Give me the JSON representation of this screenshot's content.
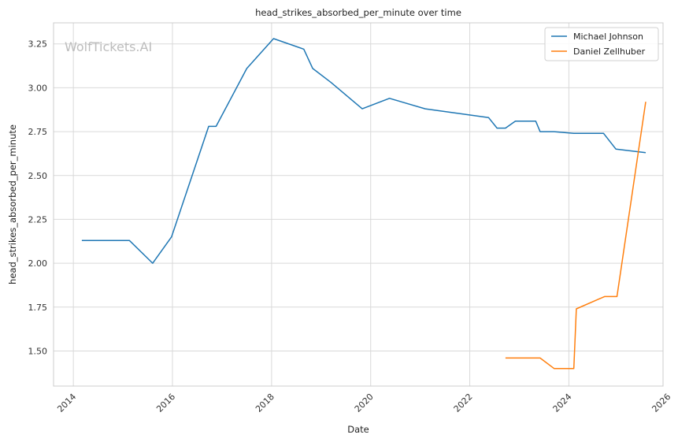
{
  "chart_data": {
    "type": "line",
    "title": "head_strikes_absorbed_per_minute over time",
    "xlabel": "Date",
    "ylabel": "head_strikes_absorbed_per_minute",
    "watermark": "WolfTickets.AI",
    "xlim": [
      2013.6,
      2025.9
    ],
    "ylim": [
      1.3,
      3.37
    ],
    "xticks": [
      2014,
      2016,
      2018,
      2020,
      2022,
      2024,
      2026
    ],
    "xtick_labels": [
      "2014",
      "2016",
      "2018",
      "2020",
      "2022",
      "2024",
      "2026"
    ],
    "yticks": [
      1.5,
      1.75,
      2.0,
      2.25,
      2.5,
      2.75,
      3.0,
      3.25
    ],
    "ytick_labels": [
      "1.50",
      "1.75",
      "2.00",
      "2.25",
      "2.50",
      "2.75",
      "3.00",
      "3.25"
    ],
    "grid": true,
    "legend_position": "top-right",
    "series": [
      {
        "name": "Michael Johnson",
        "color": "#1f77b4",
        "x": [
          2014.17,
          2015.13,
          2015.6,
          2015.98,
          2016.73,
          2016.88,
          2017.5,
          2018.04,
          2018.65,
          2018.83,
          2019.2,
          2019.83,
          2020.38,
          2021.1,
          2022.38,
          2022.55,
          2022.72,
          2022.92,
          2023.33,
          2023.42,
          2023.7,
          2024.1,
          2024.7,
          2024.95,
          2025.55
        ],
        "y": [
          2.13,
          2.13,
          2.0,
          2.15,
          2.78,
          2.78,
          3.11,
          3.28,
          3.22,
          3.11,
          3.03,
          2.88,
          2.94,
          2.88,
          2.83,
          2.77,
          2.77,
          2.81,
          2.81,
          2.75,
          2.75,
          2.74,
          2.74,
          2.65,
          2.63
        ]
      },
      {
        "name": "Daniel Zellhuber",
        "color": "#ff7f0e",
        "x": [
          2022.72,
          2023.42,
          2023.7,
          2024.1,
          2024.15,
          2024.72,
          2024.97,
          2025.55
        ],
        "y": [
          1.46,
          1.46,
          1.4,
          1.4,
          1.74,
          1.81,
          1.81,
          2.92
        ]
      }
    ]
  }
}
